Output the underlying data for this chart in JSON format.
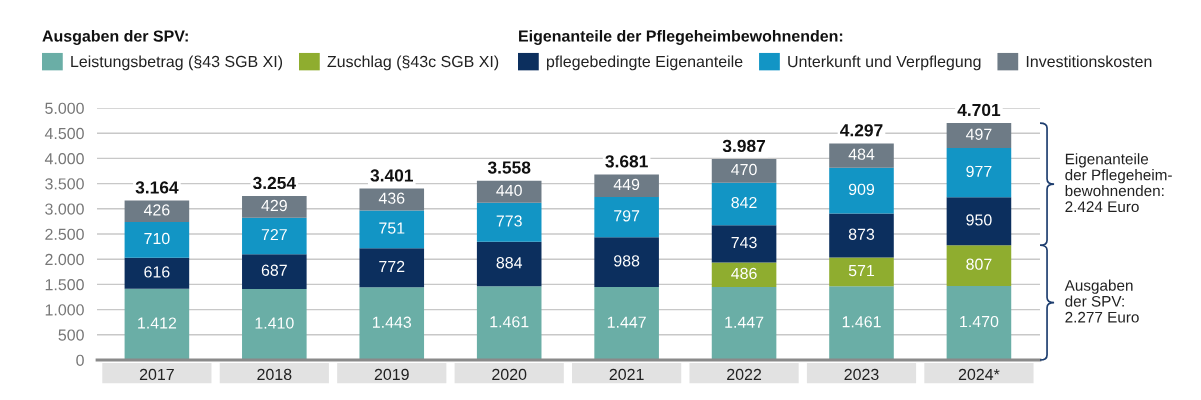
{
  "chart_data": {
    "type": "bar",
    "stacked": true,
    "categories": [
      "2017",
      "2018",
      "2019",
      "2020",
      "2021",
      "2022",
      "2023",
      "2024*"
    ],
    "series": [
      {
        "name": "Leistungsbetrag (§43 SGB XI)",
        "color": "#6aaea6",
        "values": [
          1412,
          1410,
          1443,
          1461,
          1447,
          1447,
          1461,
          1470
        ],
        "value_labels": [
          "1.412",
          "1.410",
          "1.443",
          "1.461",
          "1.447",
          "1.447",
          "1.461",
          "1.470"
        ]
      },
      {
        "name": "Zuschlag (§43c SGB XI)",
        "color": "#8fad2f",
        "values": [
          null,
          null,
          null,
          null,
          null,
          486,
          571,
          807
        ],
        "value_labels": [
          null,
          null,
          null,
          null,
          null,
          "486",
          "571",
          "807"
        ]
      },
      {
        "name": "pflegebedingte Eigenanteile",
        "color": "#0c2f5e",
        "values": [
          616,
          687,
          772,
          884,
          988,
          743,
          873,
          950
        ],
        "value_labels": [
          "616",
          "687",
          "772",
          "884",
          "988",
          "743",
          "873",
          "950"
        ]
      },
      {
        "name": "Unterkunft und Verpflegung",
        "color": "#1295c5",
        "values": [
          710,
          727,
          751,
          773,
          797,
          842,
          909,
          977
        ],
        "value_labels": [
          "710",
          "727",
          "751",
          "773",
          "797",
          "842",
          "909",
          "977"
        ]
      },
      {
        "name": "Investitionskosten",
        "color": "#6e7b86",
        "values": [
          426,
          429,
          436,
          440,
          449,
          470,
          484,
          497
        ],
        "value_labels": [
          "426",
          "429",
          "436",
          "440",
          "449",
          "470",
          "484",
          "497"
        ]
      }
    ],
    "totals": [
      "3.164",
      "3.254",
      "3.401",
      "3.558",
      "3.681",
      "3.987",
      "4.297",
      "4.701"
    ],
    "ylim": [
      0,
      5000
    ],
    "yticks": [
      {
        "value": 0,
        "label": "0"
      },
      {
        "value": 500,
        "label": "500"
      },
      {
        "value": 1000,
        "label": "1.000"
      },
      {
        "value": 1500,
        "label": "1.500"
      },
      {
        "value": 2000,
        "label": "2.000"
      },
      {
        "value": 2500,
        "label": "2.500"
      },
      {
        "value": 3000,
        "label": "3.000"
      },
      {
        "value": 3500,
        "label": "3.500"
      },
      {
        "value": 4000,
        "label": "4.000"
      },
      {
        "value": 4500,
        "label": "4.500"
      },
      {
        "value": 5000,
        "label": "5.000"
      }
    ],
    "grid": "y",
    "legend": "top",
    "annotations": [
      "Ausgaben der SPV:",
      "Eigenanteile der Pflegeheimbewohnenden:",
      "Eigenanteile\nder Pflegeheim-\nbewohnenden:\n2.424 Euro",
      "Ausgaben\nder SPV:\n2.277 Euro"
    ]
  }
}
